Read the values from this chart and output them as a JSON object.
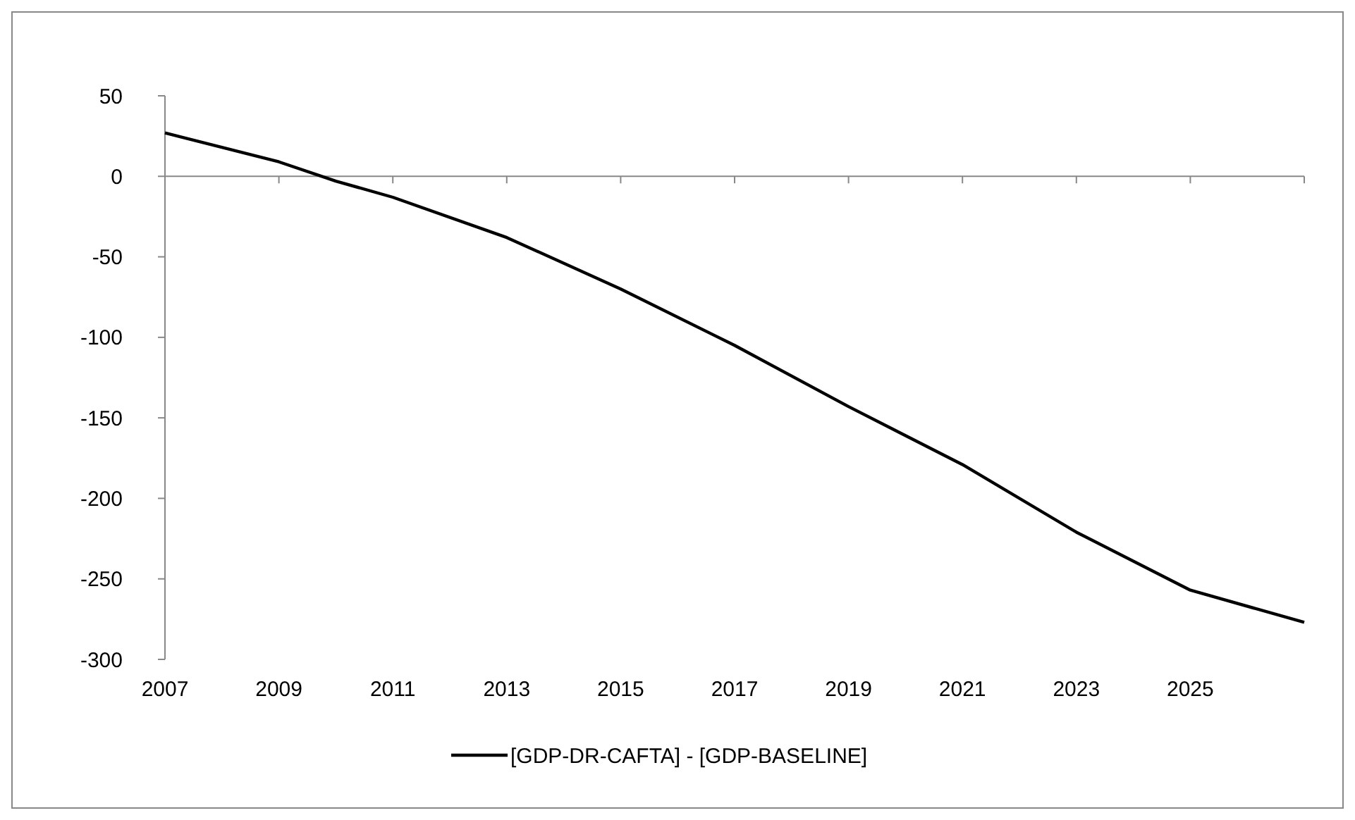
{
  "chart_data": {
    "type": "line",
    "x": [
      2007,
      2009,
      2010,
      2011,
      2013,
      2015,
      2017,
      2019,
      2021,
      2023,
      2025,
      2027
    ],
    "series": [
      {
        "name": "[GDP-DR-CAFTA] - [GDP-BASELINE]",
        "color": "#000000",
        "values": [
          27,
          9,
          -3,
          -13,
          -38,
          -70,
          -105,
          -143,
          -179,
          -221,
          -257,
          -277
        ]
      }
    ],
    "xlim": [
      2007,
      2027
    ],
    "xticks": [
      2007,
      2009,
      2011,
      2013,
      2015,
      2017,
      2019,
      2021,
      2023,
      2025,
      {
        "value": 2027,
        "label": null
      }
    ],
    "ylim": [
      -300,
      50
    ],
    "yticks": [
      -300,
      -250,
      -200,
      -150,
      -100,
      -50,
      0,
      50
    ],
    "legend": "bottom",
    "marker": "none",
    "line_style": "solid"
  }
}
